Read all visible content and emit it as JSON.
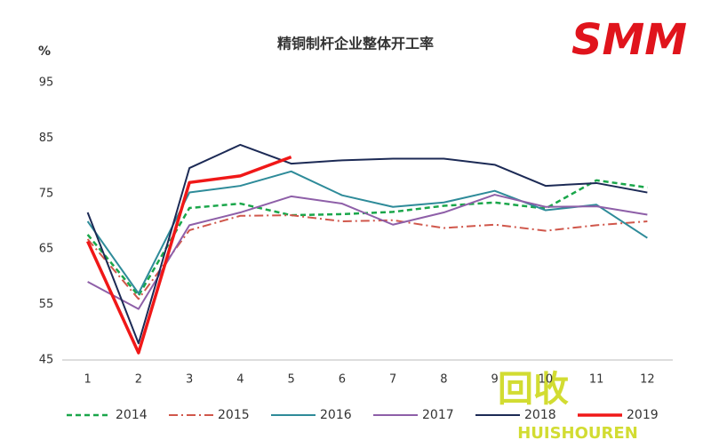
{
  "chart_data": {
    "type": "line",
    "title": "精铜制杆企业整体开工率",
    "y_label": "%",
    "categories": [
      "1",
      "2",
      "3",
      "4",
      "5",
      "6",
      "7",
      "8",
      "9",
      "10",
      "11",
      "12"
    ],
    "series": [
      {
        "name": "2014",
        "color": "#1aa64a",
        "style": "dashed",
        "values": [
          67.6,
          56.6,
          72.4,
          73.2,
          71.1,
          71.3,
          71.7,
          72.8,
          73.4,
          72.3,
          77.4,
          76.1
        ]
      },
      {
        "name": "2015",
        "color": "#d0574b",
        "style": "dashdot",
        "values": [
          66.8,
          56,
          68.4,
          71,
          71.1,
          70,
          70.2,
          68.8,
          69.4,
          68.3,
          69.3,
          70
        ]
      },
      {
        "name": "2016",
        "color": "#2e8b99",
        "style": "solid",
        "values": [
          70,
          57,
          75.2,
          76.4,
          79,
          74.7,
          72.6,
          73.4,
          75.5,
          72,
          73,
          67
        ]
      },
      {
        "name": "2017",
        "color": "#8e5fa8",
        "style": "solid",
        "values": [
          59.1,
          54.2,
          69.3,
          71.6,
          74.5,
          73.2,
          69.4,
          71.6,
          74.8,
          72.6,
          72.7,
          71.2
        ]
      },
      {
        "name": "2018",
        "color": "#1c2a55",
        "style": "solid",
        "values": [
          71.6,
          48,
          79.6,
          83.8,
          80.4,
          81,
          81.3,
          81.3,
          80.2,
          76.4,
          76.9,
          75.2
        ]
      },
      {
        "name": "2019",
        "color": "#f01818",
        "style": "thick",
        "values": [
          66.4,
          46.3,
          77,
          78.2,
          81.6,
          null,
          null,
          null,
          null,
          null,
          null,
          null
        ]
      }
    ],
    "ylim": [
      45,
      95
    ],
    "yticks": [
      45,
      55,
      65,
      75,
      85,
      95
    ],
    "grid": false,
    "legend": "bottom"
  },
  "logo": "SMM",
  "watermark": {
    "icon": "回收",
    "text": "HUISHOUREN"
  }
}
